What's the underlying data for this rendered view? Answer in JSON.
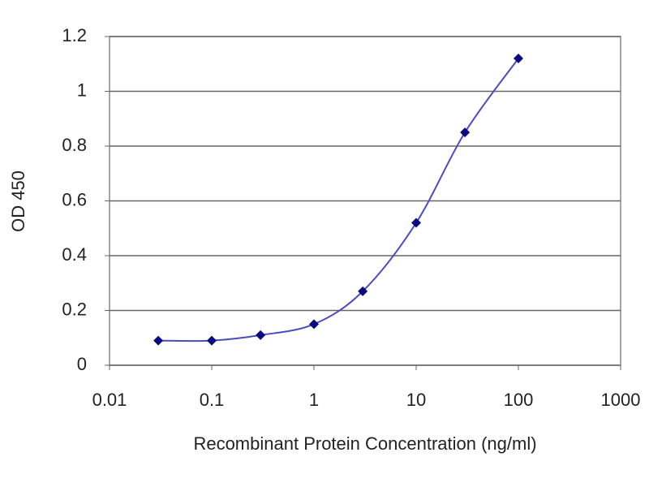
{
  "chart_data": {
    "type": "line",
    "x_label": "Recombinant Protein Concentration (ng/ml)",
    "y_label": "OD 450",
    "x": [
      0.03,
      0.1,
      0.3,
      1,
      3,
      10,
      30,
      100
    ],
    "values": [
      0.09,
      0.09,
      0.11,
      0.15,
      0.27,
      0.52,
      0.85,
      1.12
    ],
    "marker_color": "#0a0a80",
    "line_color": "#4c4cc0",
    "x_log": true,
    "xlim": [
      0.01,
      1000
    ],
    "xticks": [
      0.01,
      0.1,
      1,
      10,
      100,
      1000
    ],
    "ylim": [
      0,
      1.2
    ],
    "yticks": [
      0,
      0.2,
      0.4,
      0.6,
      0.8,
      1,
      1.2
    ],
    "grid": true
  }
}
